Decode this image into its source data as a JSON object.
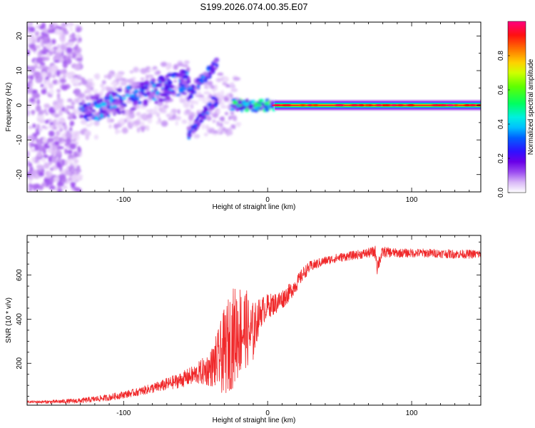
{
  "title": "S199.2026.074.00.35.E07",
  "colors": {
    "snr_line": "#f0282a",
    "colormap": [
      "#ffffff",
      "#e6cdf9",
      "#b57af0",
      "#8a2cf0",
      "#5b00e6",
      "#2020ff",
      "#00b8ff",
      "#00ffe6",
      "#00ff40",
      "#a8ff00",
      "#ffff00",
      "#ff8000",
      "#ff0000",
      "#ff007a"
    ]
  },
  "chart_data": [
    {
      "type": "heatmap",
      "name": "spectrogram",
      "title": "S199.2026.074.00.35.E07",
      "xlabel": "Height of straight line (km)",
      "ylabel": "Frequency (Hz)",
      "xlim": [
        -167,
        148
      ],
      "ylim": [
        -25,
        24
      ],
      "xticks": [
        -100,
        0,
        100
      ],
      "yticks": [
        -20,
        -10,
        0,
        10,
        20
      ],
      "colorbar": {
        "label": "Normalized spectral amplitude",
        "range": [
          0,
          1
        ],
        "ticks": [
          "0.0",
          "0.2",
          "0.4",
          "0.6",
          "0.8"
        ]
      },
      "regions": [
        {
          "name": "noise",
          "x": [
            -167,
            -130
          ],
          "description": "scattered low-amplitude blobs over full frequency range"
        },
        {
          "name": "rising-tone-1",
          "x": [
            -130,
            -55
          ],
          "y": [
            -2,
            7
          ],
          "amplitude": 0.35
        },
        {
          "name": "rising-tone-2",
          "x": [
            -55,
            -35
          ],
          "y": [
            -9,
            17
          ],
          "amplitude": 0.3
        },
        {
          "name": "tone-onset",
          "x": [
            -25,
            5
          ],
          "y": [
            -1,
            1
          ],
          "amplitude": 0.5
        },
        {
          "name": "steady-carrier",
          "x": [
            5,
            148
          ],
          "y": [
            -1.5,
            1.5
          ],
          "amplitude": 0.95
        }
      ]
    },
    {
      "type": "line",
      "name": "snr",
      "xlabel": "Height of straight line (km)",
      "ylabel": "SNR (10 * v/v)",
      "xlim": [
        -167,
        148
      ],
      "ylim": [
        10,
        780
      ],
      "xticks": [
        -100,
        0,
        100
      ],
      "yticks": [
        200,
        400,
        600
      ],
      "series": [
        {
          "name": "SNR",
          "x": [
            -167,
            -150,
            -130,
            -110,
            -90,
            -75,
            -60,
            -50,
            -40,
            -35,
            -30,
            -25,
            -20,
            -15,
            -12,
            -10,
            -8,
            -5,
            0,
            5,
            10,
            15,
            20,
            25,
            30,
            40,
            50,
            60,
            70,
            75,
            76,
            80,
            90,
            100,
            110,
            120,
            130,
            140,
            148
          ],
          "y": [
            25,
            25,
            30,
            45,
            70,
            95,
            125,
            150,
            175,
            210,
            250,
            310,
            350,
            360,
            330,
            340,
            380,
            430,
            460,
            470,
            490,
            520,
            560,
            610,
            640,
            665,
            680,
            690,
            700,
            705,
            640,
            705,
            700,
            700,
            700,
            698,
            695,
            695,
            695
          ],
          "noise": [
            5,
            8,
            12,
            15,
            18,
            25,
            35,
            45,
            80,
            130,
            200,
            230,
            220,
            180,
            150,
            140,
            100,
            70,
            55,
            50,
            45,
            40,
            35,
            30,
            25,
            20,
            20,
            20,
            22,
            30,
            40,
            25,
            20,
            20,
            20,
            20,
            20,
            20,
            20
          ]
        }
      ]
    }
  ]
}
